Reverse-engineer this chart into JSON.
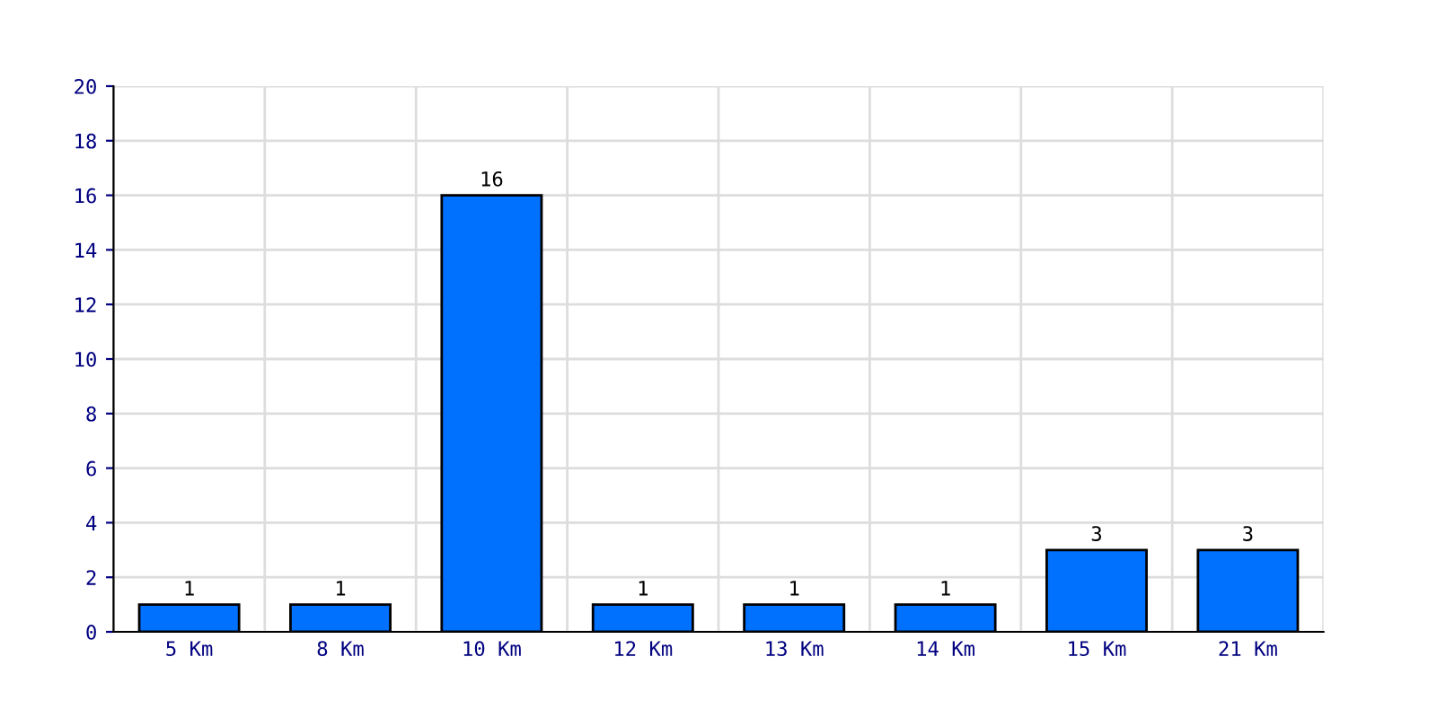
{
  "chart_data": {
    "type": "bar",
    "categories": [
      "5 Km",
      "8 Km",
      "10 Km",
      "12 Km",
      "13 Km",
      "14 Km",
      "15 Km",
      "21 Km"
    ],
    "values": [
      1,
      1,
      16,
      1,
      1,
      1,
      3,
      3
    ],
    "color": "#0070ff",
    "ylim": [
      0,
      20
    ],
    "yticks": [
      0,
      2,
      4,
      6,
      8,
      10,
      12,
      14,
      16,
      18,
      20
    ],
    "grid": true,
    "data_labels": true
  }
}
